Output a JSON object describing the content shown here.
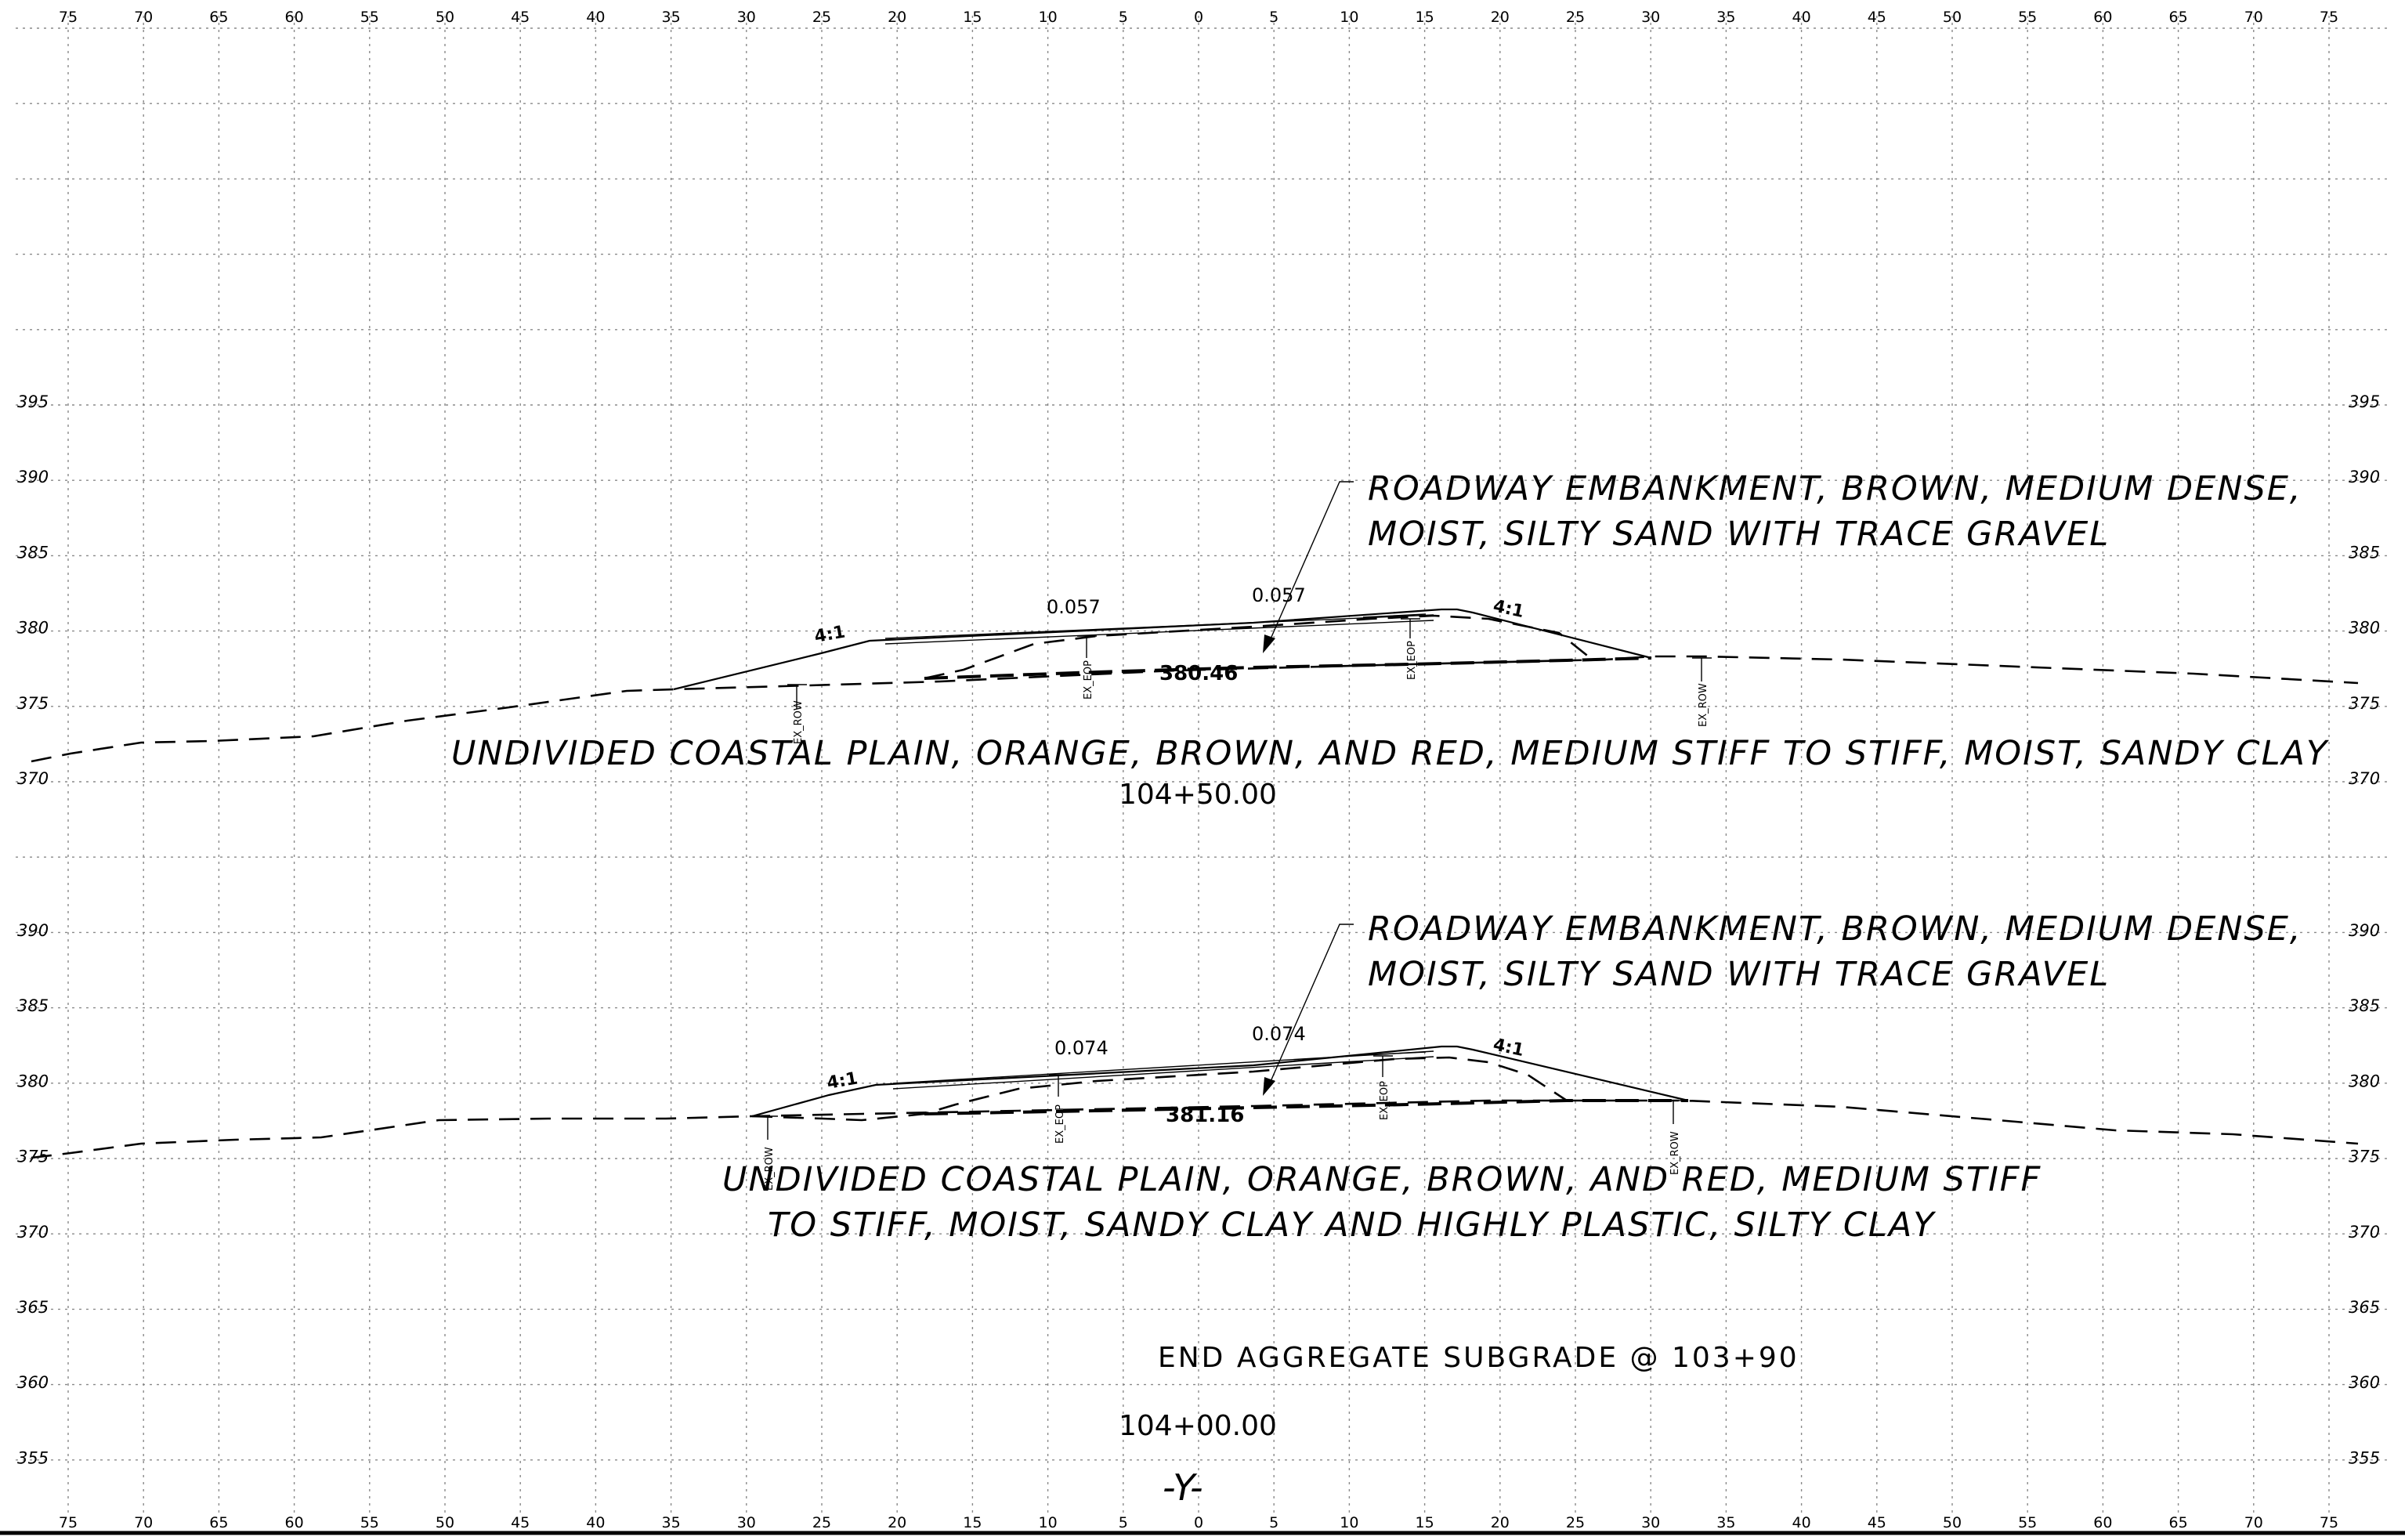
{
  "offset_ticks": [
    "75",
    "70",
    "65",
    "60",
    "55",
    "50",
    "45",
    "40",
    "35",
    "30",
    "25",
    "20",
    "15",
    "10",
    "5",
    "0",
    "5",
    "10",
    "15",
    "20",
    "25",
    "30",
    "35",
    "40",
    "45",
    "50",
    "55",
    "60",
    "65",
    "70",
    "75"
  ],
  "sections": [
    {
      "station": "104+50.00",
      "elevation_labels": [
        "395",
        "390",
        "385",
        "380",
        "375",
        "370"
      ],
      "embankment_note": [
        "ROADWAY EMBANKMENT, BROWN, MEDIUM DENSE,",
        "MOIST, SILTY SAND WITH TRACE GRAVEL"
      ],
      "subgrade_note": [
        "UNDIVIDED COASTAL PLAIN, ORANGE, BROWN, AND RED, MEDIUM STIFF TO STIFF, MOIST, SANDY CLAY"
      ],
      "left_slope": "4:1",
      "right_slope": "4:1",
      "cross_slope_left": "0.057",
      "cross_slope_right": "0.057",
      "datum_elevation": "380.46",
      "left_row": "EX_ROW",
      "left_eop": "EX_EOP",
      "right_eop": "EX_EOP",
      "right_row": "EX_ROW"
    },
    {
      "station": "104+00.00",
      "elevation_labels": [
        "390",
        "385",
        "380",
        "375",
        "370",
        "365",
        "360",
        "355"
      ],
      "embankment_note": [
        "ROADWAY EMBANKMENT, BROWN, MEDIUM DENSE,",
        "MOIST, SILTY SAND WITH TRACE GRAVEL"
      ],
      "subgrade_note": [
        "UNDIVIDED COASTAL PLAIN, ORANGE, BROWN, AND RED, MEDIUM STIFF",
        "TO STIFF, MOIST, SANDY CLAY AND HIGHLY PLASTIC, SILTY CLAY"
      ],
      "left_slope": "4:1",
      "right_slope": "4:1",
      "cross_slope_left": "0.074",
      "cross_slope_right": "0.074",
      "datum_elevation": "381.16",
      "left_row": "EX_ROW",
      "left_eop": "EX_EOP",
      "right_eop": "EX_EOP",
      "right_row": "EX_ROW",
      "end_note": "END AGGREGATE SUBGRADE @ 103+90"
    }
  ],
  "alignment_label": "-Y-",
  "colors": {
    "ink": "#000000",
    "grid": "#8a8a8a",
    "paper": "#ffffff"
  }
}
